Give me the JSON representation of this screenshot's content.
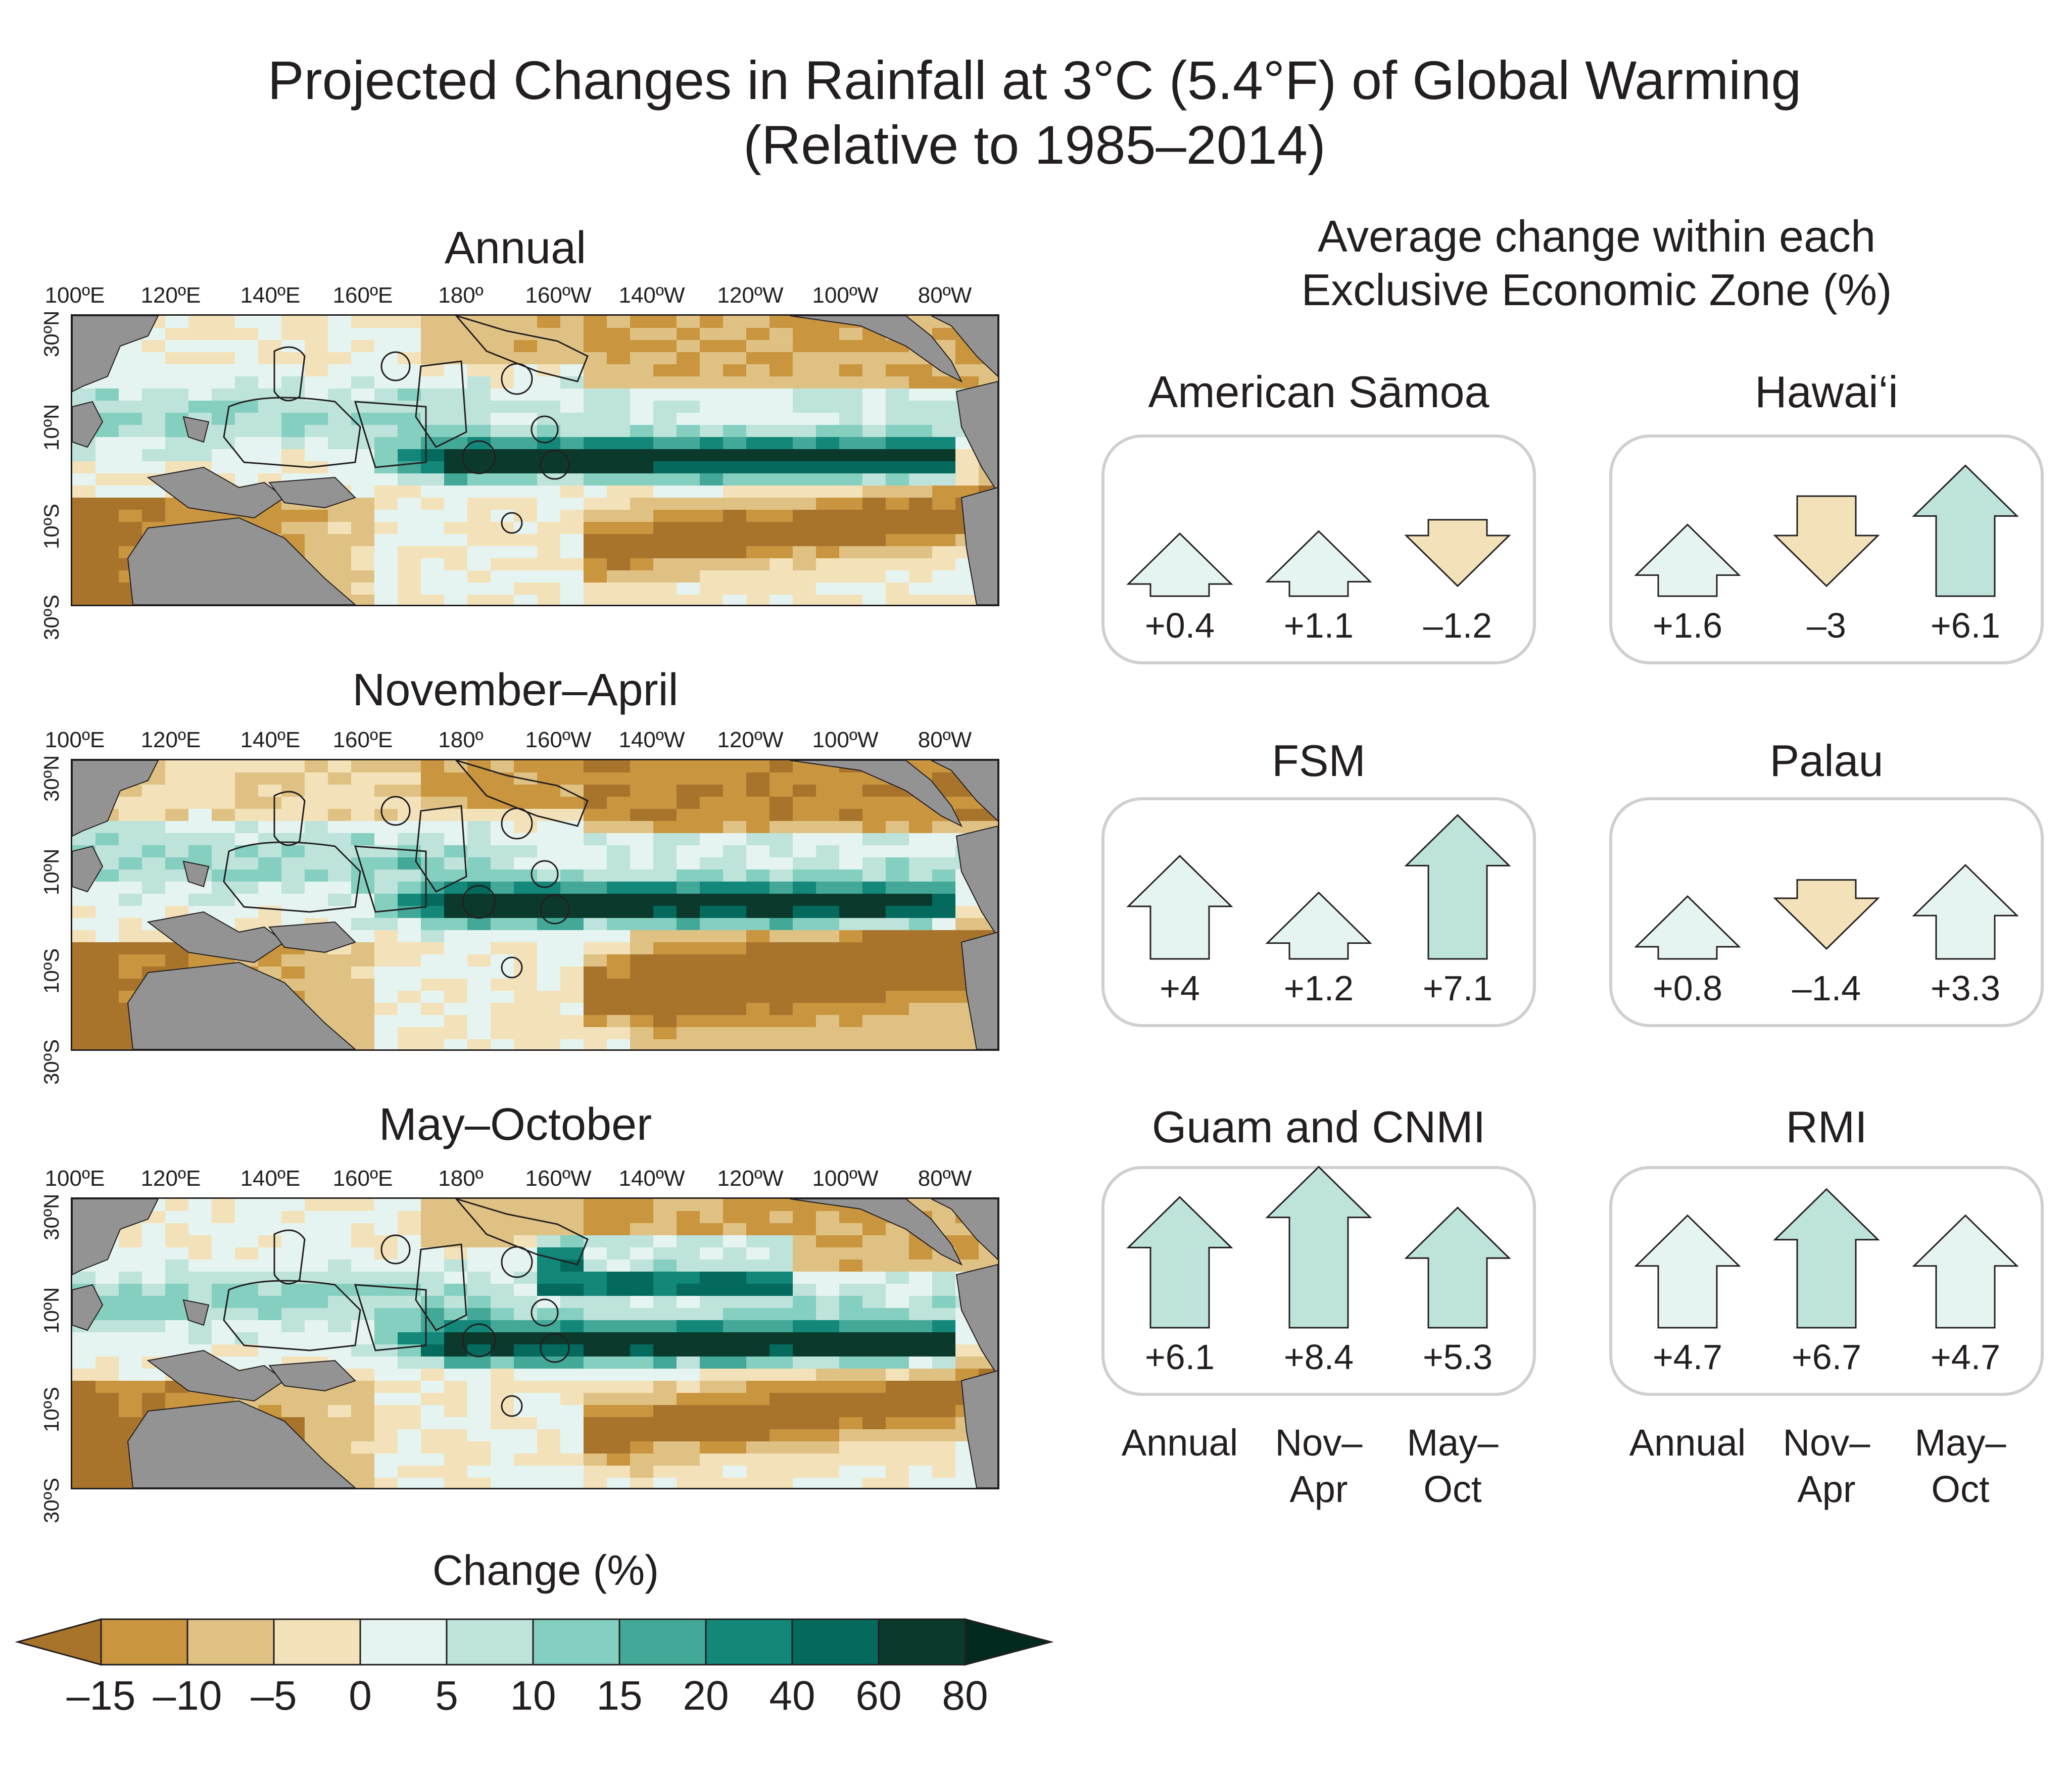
{
  "title": {
    "line1": "Projected Changes in Rainfall at 3°C (5.4°F) of Global Warming",
    "line2": "(Relative to 1985–2014)"
  },
  "maps": [
    {
      "title": "Annual"
    },
    {
      "title": "November–April"
    },
    {
      "title": "May–October"
    }
  ],
  "lon_labels": [
    "100ºE",
    "120ºE",
    "140ºE",
    "160ºE",
    "180º",
    "160ºW",
    "140ºW",
    "120ºW",
    "100ºW",
    "80ºW"
  ],
  "lat_labels": [
    "30ºN",
    "10ºN",
    "10ºS",
    "30ºS"
  ],
  "colorbar": {
    "title": "Change (%)",
    "ticks": [
      "–15",
      "–10",
      "–5",
      "0",
      "5",
      "10",
      "15",
      "20",
      "40",
      "60",
      "80"
    ],
    "colors": [
      "#a8742c",
      "#c9953f",
      "#dfc283",
      "#f3e2b9",
      "#e5f4f1",
      "#bde3db",
      "#84cfbf",
      "#44a898",
      "#12877a",
      "#036a5d",
      "#0b3a2c",
      "#022a1e"
    ]
  },
  "eez": {
    "title_line1": "Average change within each",
    "title_line2": "Exclusive Economic Zone (%)",
    "season_labels": {
      "annual": "Annual",
      "nov_line1": "Nov–",
      "nov_line2": "Apr",
      "may_line1": "May–",
      "may_line2": "Oct"
    },
    "panels": [
      {
        "name": "American Sāmoa",
        "values": [
          "+0.4",
          "+1.1",
          "–1.2"
        ],
        "numbers": [
          0.4,
          1.1,
          -1.2
        ]
      },
      {
        "name": "Hawai‘i",
        "values": [
          "+1.6",
          "–3",
          "+6.1"
        ],
        "numbers": [
          1.6,
          -3,
          6.1
        ]
      },
      {
        "name": "FSM",
        "values": [
          "+4",
          "+1.2",
          "+7.1"
        ],
        "numbers": [
          4,
          1.2,
          7.1
        ]
      },
      {
        "name": "Palau",
        "values": [
          "+0.8",
          "–1.4",
          "+3.3"
        ],
        "numbers": [
          0.8,
          -1.4,
          3.3
        ]
      },
      {
        "name": "Guam and CNMI",
        "values": [
          "+6.1",
          "+8.4",
          "+5.3"
        ],
        "numbers": [
          6.1,
          8.4,
          5.3
        ]
      },
      {
        "name": "RMI",
        "values": [
          "+4.7",
          "+6.7",
          "+4.7"
        ],
        "numbers": [
          4.7,
          6.7,
          4.7
        ]
      }
    ]
  }
}
